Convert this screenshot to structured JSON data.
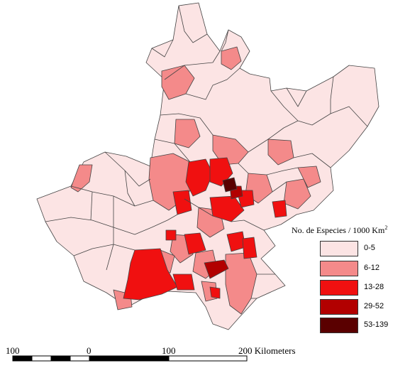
{
  "legend": {
    "title_main": "No. de Especies / 1000 Km",
    "title_sup": "2",
    "classes": [
      {
        "label": "0-5",
        "color": "#fce4e4"
      },
      {
        "label": "6-12",
        "color": "#f48a8a"
      },
      {
        "label": "13-28",
        "color": "#f01010"
      },
      {
        "label": "29-52",
        "color": "#b20000"
      },
      {
        "label": "53-139",
        "color": "#5a0000"
      }
    ]
  },
  "scale_bar": {
    "labels": [
      "100",
      "0",
      "100",
      "200 Kilometers"
    ]
  }
}
